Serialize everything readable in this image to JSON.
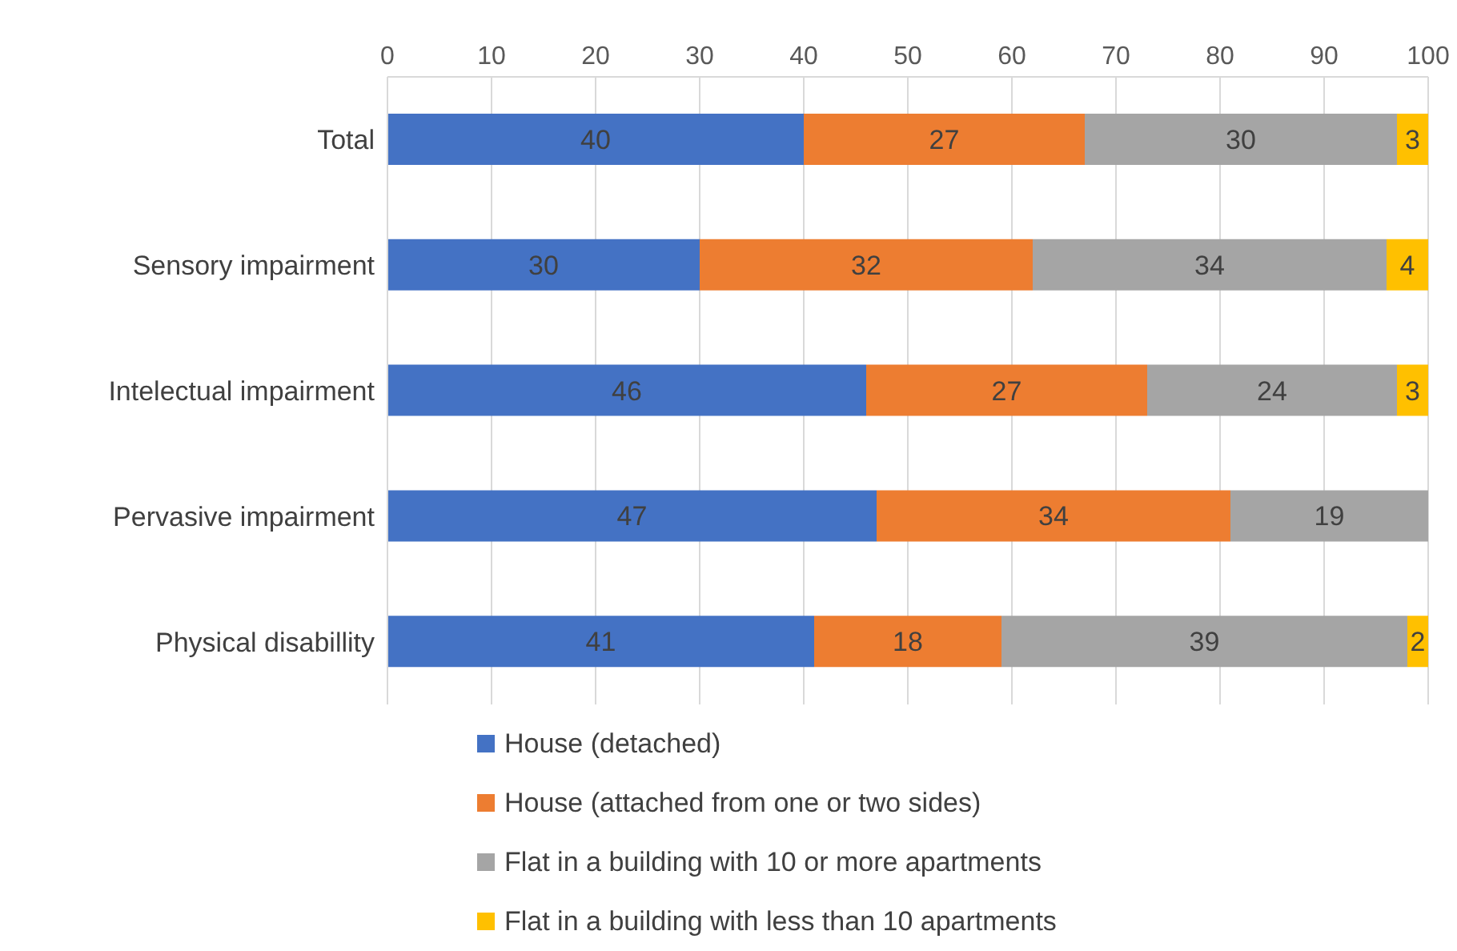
{
  "chart_data": {
    "type": "bar",
    "orientation": "horizontal",
    "stacked": true,
    "categories": [
      "Total",
      "Sensory impairment",
      "Intelectual impairment",
      "Pervasive impairment",
      "Physical disabillity"
    ],
    "series": [
      {
        "name": "House (detached)",
        "color": "#4472c4",
        "values": [
          40,
          30,
          46,
          47,
          41
        ]
      },
      {
        "name": "House (attached from one or two sides)",
        "color": "#ed7d31",
        "values": [
          27,
          32,
          27,
          34,
          18
        ]
      },
      {
        "name": "Flat in a building with 10 or more apartments",
        "color": "#a5a5a5",
        "values": [
          30,
          34,
          24,
          19,
          39
        ]
      },
      {
        "name": "Flat in a building with less than 10 apartments",
        "color": "#ffc000",
        "values": [
          3,
          4,
          3,
          null,
          2
        ]
      }
    ],
    "xlim": [
      0,
      100
    ],
    "xticks": [
      0,
      10,
      20,
      30,
      40,
      50,
      60,
      70,
      80,
      90,
      100
    ],
    "grid": "x",
    "legend": "bottom",
    "data_labels": true
  }
}
